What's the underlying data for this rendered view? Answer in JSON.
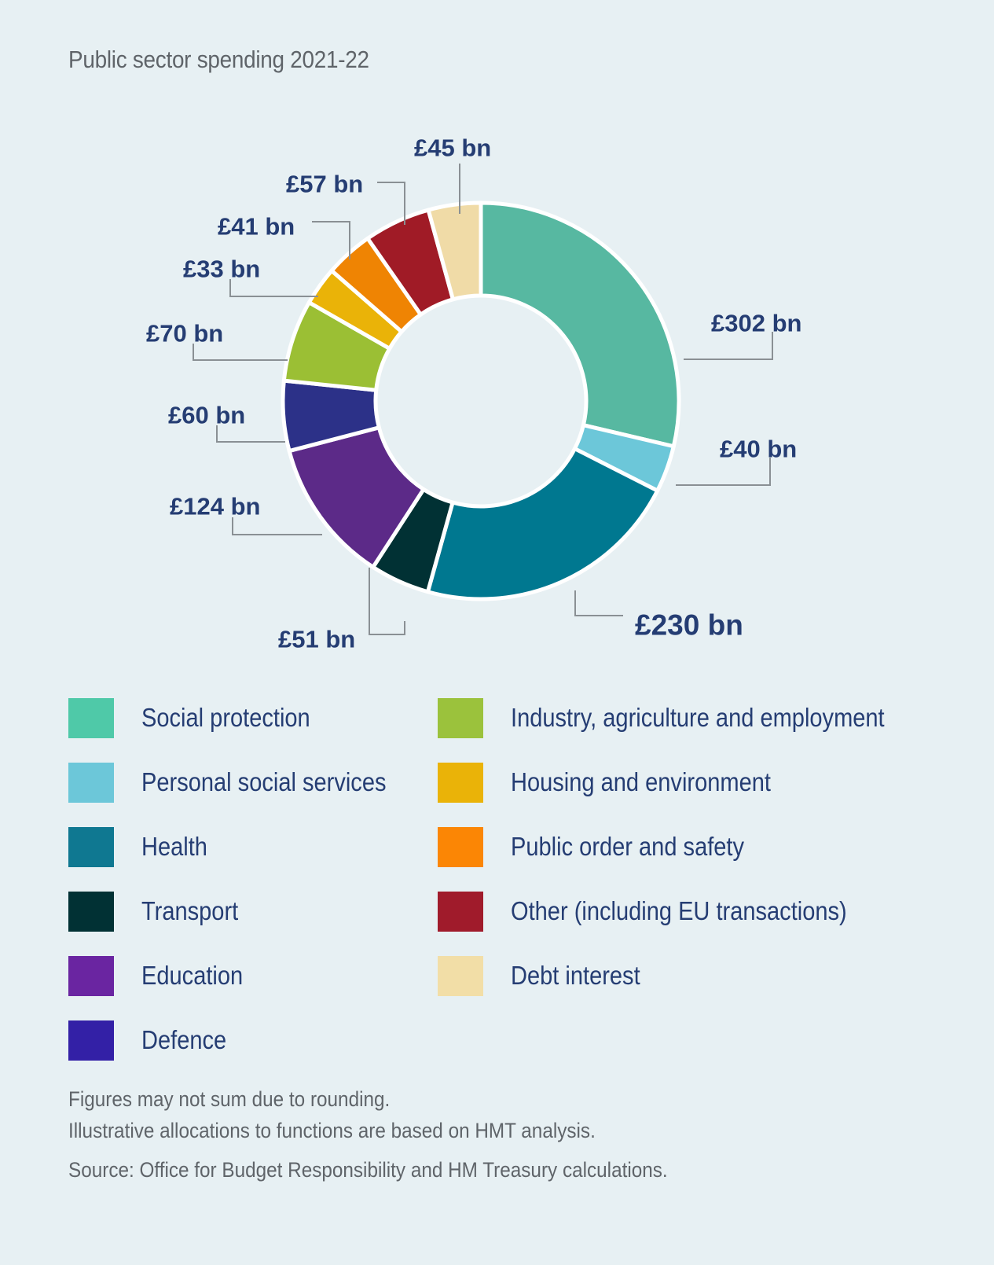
{
  "title": "Public sector spending 2021-22",
  "chart_data": {
    "type": "pie",
    "title": "Public sector spending 2021-22",
    "unit": "£ bn",
    "series": [
      {
        "name": "Social protection",
        "value": 302,
        "label": "£302 bn",
        "color": "#57b8a1",
        "legend_color": "#4fc9a8"
      },
      {
        "name": "Personal social services",
        "value": 40,
        "label": "£40 bn",
        "color": "#6cc7d9",
        "legend_color": "#6cc7d9"
      },
      {
        "name": "Health",
        "value": 230,
        "label": "£230 bn",
        "color": "#007890",
        "legend_color": "#0f7891"
      },
      {
        "name": "Transport",
        "value": 51,
        "label": "£51 bn",
        "color": "#013134",
        "legend_color": "#013134"
      },
      {
        "name": "Education",
        "value": 124,
        "label": "£124 bn",
        "color": "#5c2a88",
        "legend_color": "#6a25a1"
      },
      {
        "name": "Defence",
        "value": 60,
        "label": "£60 bn",
        "color": "#2c3188",
        "legend_color": "#3320a6"
      },
      {
        "name": "Industry, agriculture and employment",
        "value": 70,
        "label": "£70 bn",
        "color": "#9bbf34",
        "legend_color": "#9bc23c"
      },
      {
        "name": "Housing and environment",
        "value": 33,
        "label": "£33 bn",
        "color": "#eab308",
        "legend_color": "#eab308"
      },
      {
        "name": "Public order and safety",
        "value": 41,
        "label": "£41 bn",
        "color": "#ef8403",
        "legend_color": "#fb8605"
      },
      {
        "name": "Other (including EU transactions)",
        "value": 57,
        "label": "£57 bn",
        "color": "#a01b26",
        "legend_color": "#a01b2b"
      },
      {
        "name": "Debt interest",
        "value": 45,
        "label": "£45 bn",
        "color": "#f0dba7",
        "legend_color": "#f2dea7"
      }
    ]
  },
  "notes": {
    "rounding": "Figures may not sum due to rounding.",
    "allocations": "Illustrative allocations to functions are based on HMT analysis.",
    "source": "Source: Office for Budget Responsibility and HM Treasury calculations."
  }
}
